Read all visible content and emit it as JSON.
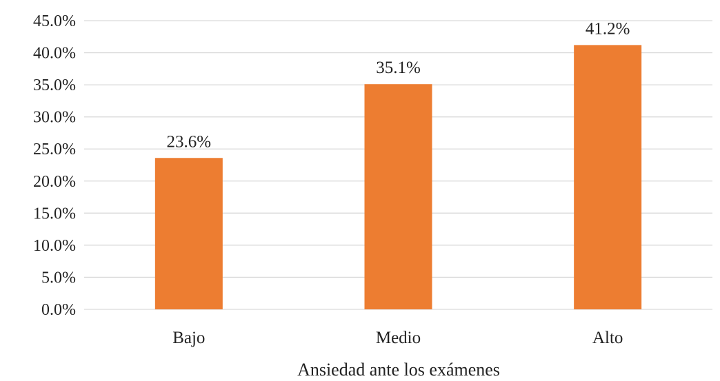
{
  "chart_data": {
    "type": "bar",
    "categories": [
      "Bajo",
      "Medio",
      "Alto"
    ],
    "values": [
      23.6,
      35.1,
      41.2
    ],
    "data_labels": [
      "23.6%",
      "35.1%",
      "41.2%"
    ],
    "title": "",
    "xlabel": "Ansiedad ante los exámenes",
    "ylabel": "",
    "ylim": [
      0,
      45
    ],
    "yticks": [
      0,
      5,
      10,
      15,
      20,
      25,
      30,
      35,
      40,
      45
    ],
    "ytick_labels": [
      "0.0%",
      "5.0%",
      "10.0%",
      "15.0%",
      "20.0%",
      "25.0%",
      "30.0%",
      "35.0%",
      "40.0%",
      "45.0%"
    ],
    "grid": true,
    "legend": "none",
    "bar_color": "#ED7D31",
    "grid_color": "#D9D9D9"
  }
}
